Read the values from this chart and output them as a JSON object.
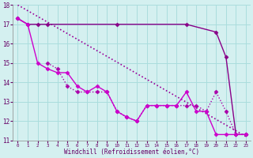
{
  "line1": {
    "x": [
      0,
      23
    ],
    "y": [
      18.0,
      11.2
    ],
    "color": "#990099",
    "linestyle": "dotted",
    "marker": null,
    "linewidth": 1.2
  },
  "line2": {
    "x": [
      0,
      1,
      2,
      3,
      10,
      17,
      20,
      21,
      22,
      23
    ],
    "y": [
      17.3,
      17.0,
      17.0,
      17.0,
      17.0,
      17.0,
      16.6,
      15.3,
      11.3,
      11.3
    ],
    "color": "#880088",
    "linestyle": "solid",
    "marker": "D",
    "linewidth": 1.0,
    "markersize": 2.5
  },
  "line3": {
    "x": [
      3,
      4,
      5,
      6,
      7,
      8,
      9,
      10,
      11,
      12,
      13,
      14,
      15,
      16,
      17,
      18,
      19,
      20,
      21,
      22,
      23
    ],
    "y": [
      15.0,
      14.7,
      13.8,
      13.5,
      13.5,
      13.5,
      13.5,
      12.5,
      12.2,
      12.0,
      12.8,
      12.8,
      12.8,
      12.8,
      12.8,
      12.8,
      12.5,
      13.5,
      12.5,
      11.3,
      11.3
    ],
    "color": "#aa00aa",
    "linestyle": "dotted",
    "marker": "D",
    "linewidth": 1.0,
    "markersize": 2.5
  },
  "line4": {
    "x": [
      0,
      1,
      2,
      3,
      4,
      5,
      6,
      7,
      8,
      9,
      10,
      11,
      12,
      13,
      14,
      15,
      16,
      17,
      18,
      19,
      20,
      21,
      22,
      23
    ],
    "y": [
      17.3,
      17.0,
      15.0,
      14.7,
      14.5,
      14.5,
      13.8,
      13.5,
      13.8,
      13.5,
      12.5,
      12.2,
      12.0,
      12.8,
      12.8,
      12.8,
      12.8,
      13.5,
      12.5,
      12.5,
      11.3,
      11.3,
      11.3,
      11.3
    ],
    "color": "#cc00cc",
    "linestyle": "solid",
    "marker": "D",
    "linewidth": 1.0,
    "markersize": 2.5
  },
  "xlabel": "Windchill (Refroidissement éolien,°C)",
  "xlim": [
    -0.5,
    23.5
  ],
  "ylim": [
    11,
    18
  ],
  "xticks": [
    0,
    1,
    2,
    3,
    4,
    5,
    6,
    7,
    8,
    9,
    10,
    11,
    12,
    13,
    14,
    15,
    16,
    17,
    18,
    19,
    20,
    21,
    22,
    23
  ],
  "yticks": [
    11,
    12,
    13,
    14,
    15,
    16,
    17,
    18
  ],
  "bg_color": "#d4f0f0",
  "grid_color": "#aadddd"
}
